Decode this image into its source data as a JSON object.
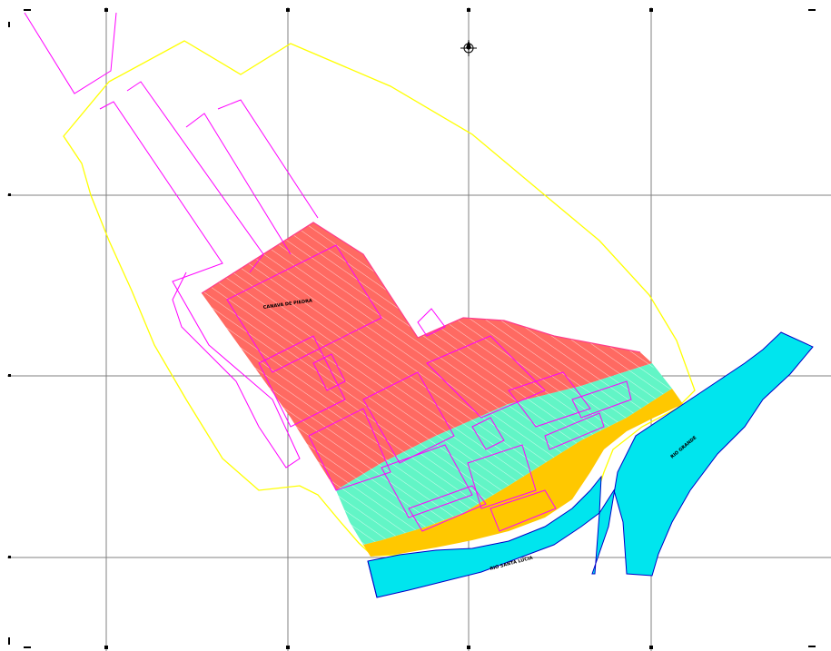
{
  "colors": {
    "background": "#ffffff",
    "grid": "#808080",
    "boundary_yellow": "#ffff00",
    "outline_magenta": "#ff00ff",
    "zone_red": "#ff6a62",
    "zone_mint": "#62f5c6",
    "zone_gold": "#ffc800",
    "river": "#00e5ee",
    "river_outline": "#0000c8",
    "hatch": "#ffffff"
  },
  "icons": {
    "north_arrow": "north-arrow-icon"
  },
  "labels": {
    "zone_label": "CANAVA DE PIEDRA",
    "river_main": "RIO GRANDE",
    "river_lower": "RIO SANTA LUCIA"
  },
  "grid": {
    "top_ticks": [
      "",
      "",
      "",
      "",
      "",
      ""
    ],
    "side_ticks": [
      "",
      "",
      "",
      ""
    ]
  }
}
